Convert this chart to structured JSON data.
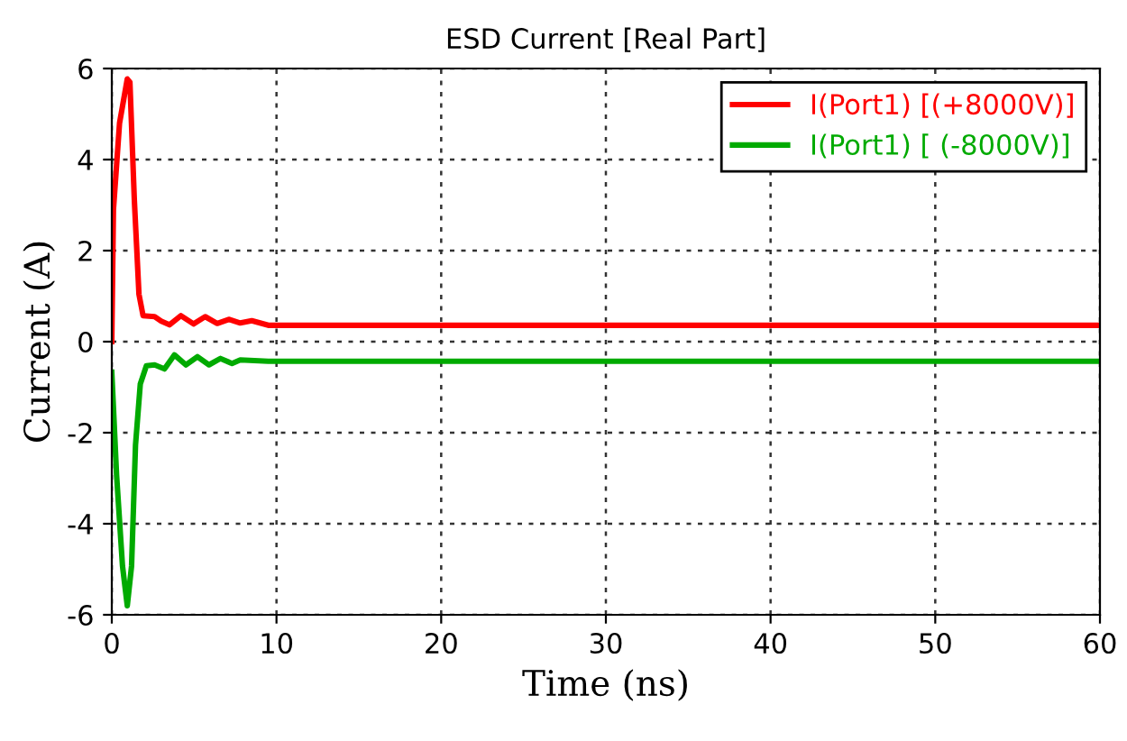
{
  "chart_data": {
    "type": "line",
    "title": "ESD Current [Real Part]",
    "xlabel": "Time (ns)",
    "ylabel": "Current (A)",
    "xlim": [
      0,
      60
    ],
    "xticks": [
      0,
      10,
      20,
      30,
      40,
      50,
      60
    ],
    "ylim": [
      -6,
      6
    ],
    "yticks": [
      -6,
      -4,
      -2,
      0,
      2,
      4,
      6
    ],
    "grid": true,
    "legend": "top right",
    "series": [
      {
        "name": "I(Port1) [(+8000V)]",
        "color": "#ff0000",
        "x": [
          0,
          0.1,
          0.47,
          0.94,
          1.1,
          1.37,
          1.65,
          1.9,
          2.6,
          3.0,
          3.5,
          4.2,
          4.96,
          5.67,
          6.4,
          7.1,
          7.8,
          8.5,
          9.5,
          60
        ],
        "values": [
          0,
          2.9,
          4.8,
          5.77,
          5.7,
          3.1,
          1.04,
          0.57,
          0.55,
          0.45,
          0.37,
          0.57,
          0.39,
          0.55,
          0.4,
          0.49,
          0.41,
          0.46,
          0.36,
          0.36
        ]
      },
      {
        "name": "I(Port1) [ (-8000V)]",
        "color": "#00aa00",
        "x": [
          0,
          0.29,
          0.65,
          0.94,
          1.2,
          1.44,
          1.73,
          2.1,
          2.6,
          3.2,
          3.8,
          4.5,
          5.2,
          5.9,
          6.6,
          7.3,
          7.8,
          9.5,
          60
        ],
        "values": [
          -0.67,
          -2.93,
          -4.93,
          -5.8,
          -4.93,
          -2.27,
          -0.93,
          -0.53,
          -0.51,
          -0.6,
          -0.29,
          -0.51,
          -0.33,
          -0.51,
          -0.37,
          -0.48,
          -0.4,
          -0.43,
          -0.43
        ]
      }
    ]
  }
}
